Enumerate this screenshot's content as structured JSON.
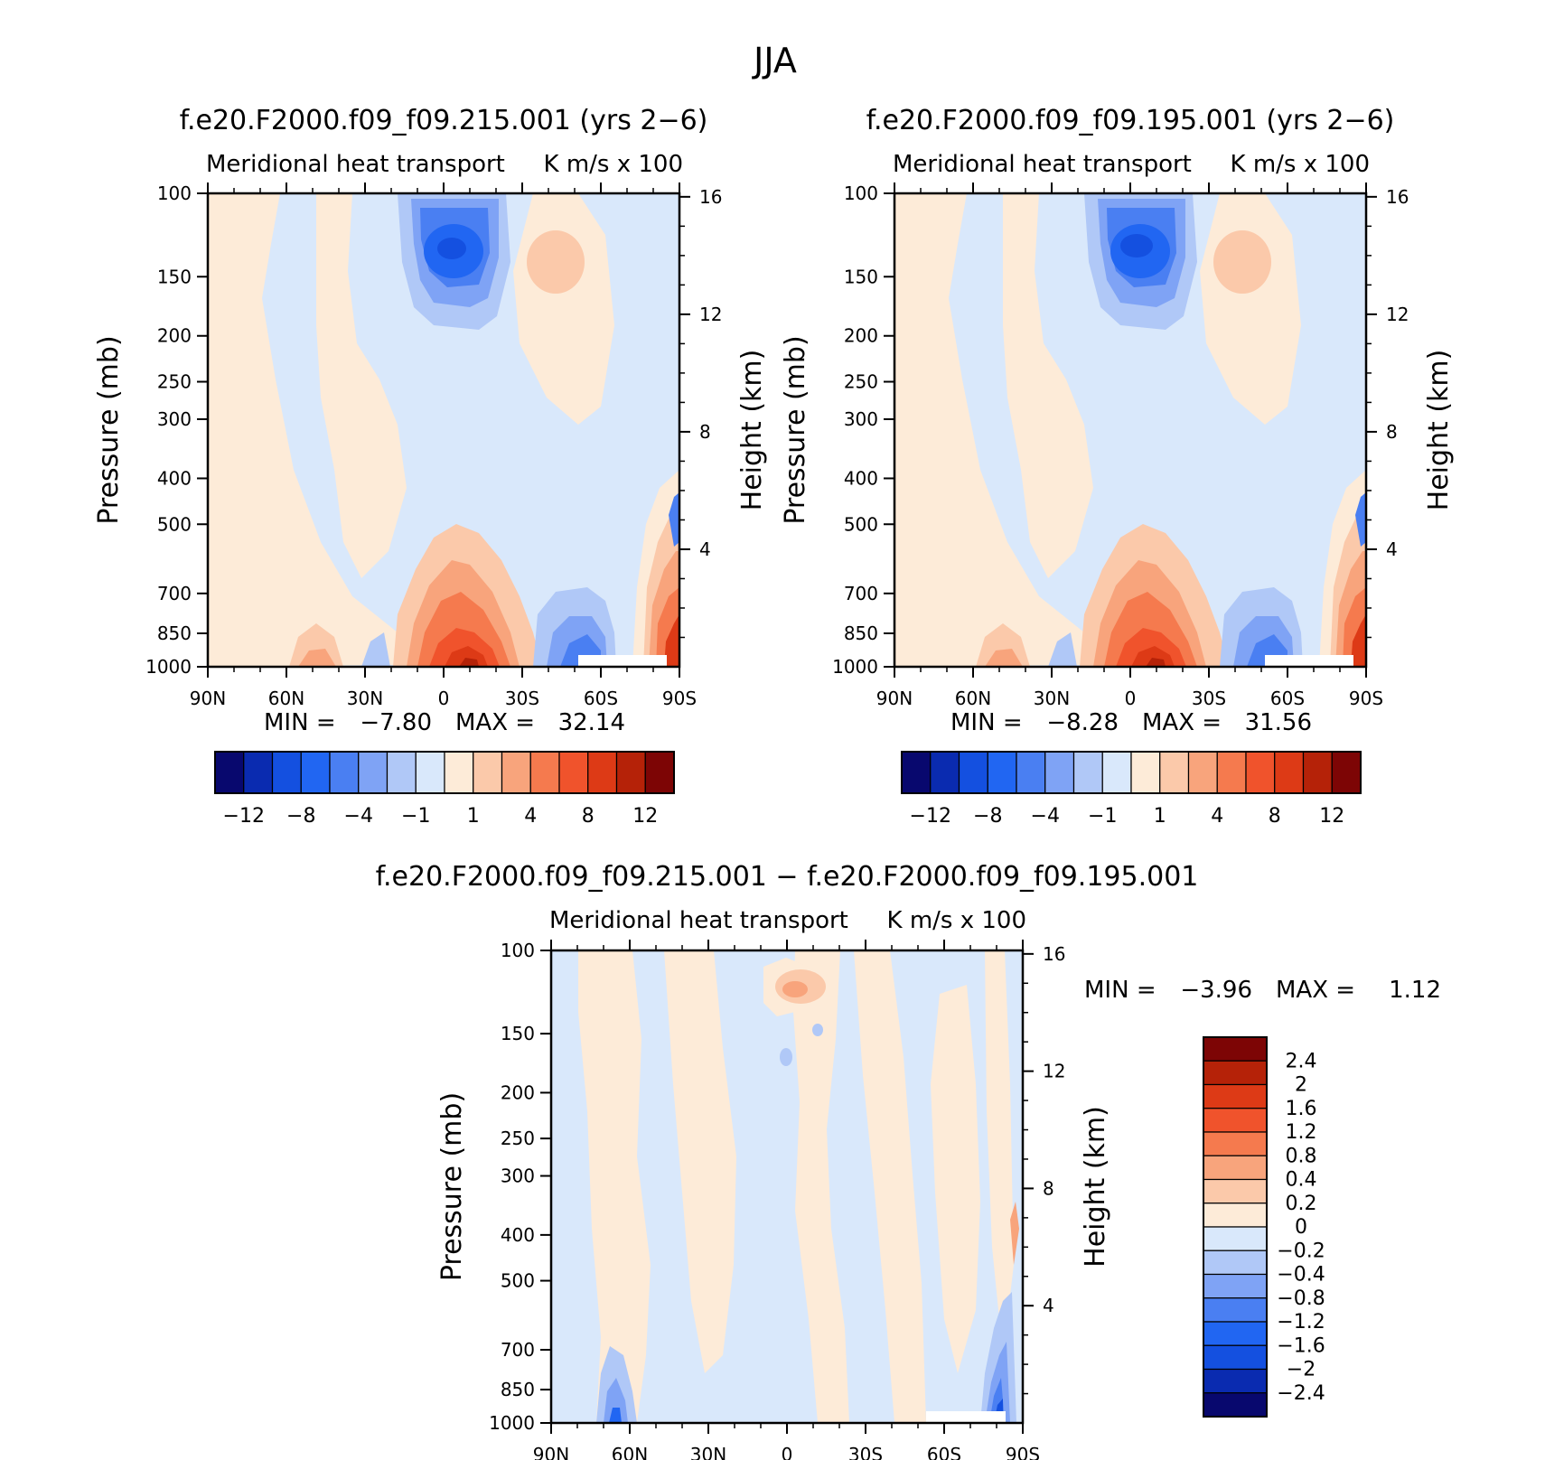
{
  "figure_title": "JJA",
  "panels": [
    {
      "id": "p1",
      "title": "f.e20.F2000.f09_f09.215.001 (yrs 2−6)",
      "left_label": "Meridional heat transport",
      "right_label": "K m/s x 100",
      "stats": {
        "min_label": "MIN =",
        "min_value": "−7.80",
        "max_label": "MAX =",
        "max_value": "32.14"
      }
    },
    {
      "id": "p2",
      "title": "f.e20.F2000.f09_f09.195.001 (yrs 2−6)",
      "left_label": "Meridional heat transport",
      "right_label": "K m/s x 100",
      "stats": {
        "min_label": "MIN =",
        "min_value": "−8.28",
        "max_label": "MAX =",
        "max_value": "31.56"
      }
    },
    {
      "id": "p3",
      "title": "f.e20.F2000.f09_f09.215.001 − f.e20.F2000.f09_f09.195.001",
      "left_label": "Meridional heat transport",
      "right_label": "K m/s x 100",
      "stats": {
        "min_label": "MIN =",
        "min_value": "−3.96",
        "max_label": "MAX =",
        "max_value": "1.12"
      }
    }
  ],
  "axes": {
    "ylabel_left": "Pressure (mb)",
    "ylabel_right": "Height (km)",
    "x_ticks": [
      "90N",
      "60N",
      "30N",
      "0",
      "30S",
      "60S",
      "90S"
    ],
    "pressure_ticks": [
      "100",
      "150",
      "200",
      "250",
      "300",
      "400",
      "500",
      "700",
      "850",
      "1000"
    ],
    "height_ticks": [
      "16",
      "12",
      "8",
      "4"
    ]
  },
  "colorbar_main": {
    "colors": [
      "#08086e",
      "#0a2bb0",
      "#1450e0",
      "#2166f2",
      "#4a7ff2",
      "#7fa3f5",
      "#b0c8f7",
      "#d9e8fb",
      "#fdebd8",
      "#fbc9aa",
      "#f8a47c",
      "#f57a4e",
      "#f0532c",
      "#dd3a16",
      "#b52208",
      "#7d0505"
    ],
    "tick_labels": [
      "−12",
      "−8",
      "−4",
      "−1",
      "1",
      "4",
      "8",
      "12"
    ]
  },
  "colorbar_diff": {
    "colors": [
      "#7d0505",
      "#b52208",
      "#dd3a16",
      "#f0532c",
      "#f57a4e",
      "#f8a47c",
      "#fbc9aa",
      "#fdebd8",
      "#d9e8fb",
      "#b0c8f7",
      "#7fa3f5",
      "#4a7ff2",
      "#2166f2",
      "#1450e0",
      "#0a2bb0",
      "#08086e"
    ],
    "tick_labels": [
      "2.4",
      "2",
      "1.6",
      "1.2",
      "0.8",
      "0.4",
      "0.2",
      "0",
      "−0.2",
      "−0.4",
      "−0.8",
      "−1.2",
      "−1.6",
      "−2",
      "−2.4"
    ]
  },
  "chart_data": [
    {
      "type": "heatmap",
      "title": "f.e20.F2000.f09_f09.215.001 (yrs 2−6)",
      "xlabel": "",
      "ylabel": "Pressure (mb)",
      "ylabel_right": "Height (km)",
      "x_range": [
        "90N",
        "90S"
      ],
      "y_range_mb": [
        100,
        1000
      ],
      "y_scale": "log",
      "min": -7.8,
      "max": 32.14,
      "features": [
        {
          "x": "5N",
          "p_mb": 200,
          "value": -8,
          "desc": "upper-tropospheric minimum"
        },
        {
          "x": "10S",
          "p_mb": 1000,
          "value": 12,
          "desc": "near-surface tropical maximum"
        },
        {
          "x": "35S",
          "p_mb": 220,
          "value": 2,
          "desc": "upper positive lobe"
        },
        {
          "x": "55S",
          "p_mb": 970,
          "value": -4,
          "desc": "surface negative lobe"
        },
        {
          "x": "75S",
          "p_mb": 920,
          "value": 8,
          "desc": "polar surface maximum"
        }
      ]
    },
    {
      "type": "heatmap",
      "title": "f.e20.F2000.f09_f09.195.001 (yrs 2−6)",
      "xlabel": "",
      "ylabel": "Pressure (mb)",
      "ylabel_right": "Height (km)",
      "x_range": [
        "90N",
        "90S"
      ],
      "y_range_mb": [
        100,
        1000
      ],
      "y_scale": "log",
      "min": -8.28,
      "max": 31.56,
      "features": [
        {
          "x": "5N",
          "p_mb": 200,
          "value": -8,
          "desc": "upper-tropospheric minimum"
        },
        {
          "x": "10S",
          "p_mb": 1000,
          "value": 12,
          "desc": "near-surface tropical maximum"
        },
        {
          "x": "35S",
          "p_mb": 220,
          "value": 2,
          "desc": "upper positive lobe"
        },
        {
          "x": "55S",
          "p_mb": 970,
          "value": -4,
          "desc": "surface negative lobe"
        },
        {
          "x": "75S",
          "p_mb": 920,
          "value": 8,
          "desc": "polar surface maximum"
        }
      ]
    },
    {
      "type": "heatmap",
      "title": "f.e20.F2000.f09_f09.215.001 − f.e20.F2000.f09_f09.195.001",
      "xlabel": "",
      "ylabel": "Pressure (mb)",
      "ylabel_right": "Height (km)",
      "x_range": [
        "90N",
        "90S"
      ],
      "y_range_mb": [
        100,
        1000
      ],
      "y_scale": "log",
      "min": -3.96,
      "max": 1.12,
      "features": [
        {
          "x": "5S",
          "p_mb": 160,
          "value": 0.4,
          "desc": "upper positive difference"
        },
        {
          "x": "65N",
          "p_mb": 960,
          "value": -1.2,
          "desc": "surface negative difference"
        },
        {
          "x": "80S",
          "p_mb": 900,
          "value": -1.6,
          "desc": "polar negative difference"
        }
      ]
    }
  ]
}
